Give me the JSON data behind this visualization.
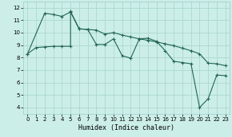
{
  "xlabel": "Humidex (Indice chaleur)",
  "xlim": [
    -0.5,
    23.5
  ],
  "ylim": [
    3.5,
    12.5
  ],
  "xticks": [
    0,
    1,
    2,
    3,
    4,
    5,
    6,
    7,
    8,
    9,
    10,
    11,
    12,
    13,
    14,
    15,
    16,
    17,
    18,
    19,
    20,
    21,
    22,
    23
  ],
  "yticks": [
    4,
    5,
    6,
    7,
    8,
    9,
    10,
    11,
    12
  ],
  "background_color": "#cceee8",
  "grid_color": "#aad8d0",
  "line_color": "#226655",
  "line1_x": [
    0,
    1,
    2,
    3,
    4,
    5,
    5,
    6,
    7,
    8,
    9,
    10,
    11,
    12,
    13,
    14,
    15,
    16,
    17,
    18,
    19,
    20,
    21,
    22,
    23
  ],
  "line1_y": [
    8.3,
    8.8,
    8.85,
    8.9,
    8.9,
    8.9,
    11.7,
    10.3,
    10.25,
    9.05,
    9.05,
    9.5,
    8.15,
    7.95,
    9.5,
    9.55,
    9.3,
    8.55,
    7.7,
    7.6,
    7.5,
    4.0,
    4.7,
    6.6,
    6.55
  ],
  "line2_x": [
    0,
    2,
    3,
    4,
    5,
    6,
    7,
    8,
    9,
    10,
    11,
    12,
    13,
    14,
    15,
    16,
    17,
    18,
    19,
    20,
    21,
    22,
    23
  ],
  "line2_y": [
    8.3,
    11.55,
    11.45,
    11.3,
    11.65,
    10.3,
    10.25,
    10.2,
    9.88,
    10.0,
    9.8,
    9.65,
    9.5,
    9.38,
    9.25,
    9.1,
    8.95,
    8.75,
    8.55,
    8.3,
    7.55,
    7.5,
    7.35
  ]
}
